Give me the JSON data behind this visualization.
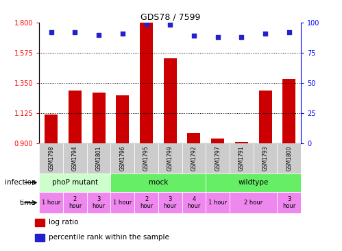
{
  "title": "GDS78 / 7599",
  "samples": [
    "GSM1798",
    "GSM1794",
    "GSM1801",
    "GSM1796",
    "GSM1795",
    "GSM1799",
    "GSM1792",
    "GSM1797",
    "GSM1791",
    "GSM1793",
    "GSM1800"
  ],
  "log_ratio": [
    1.115,
    1.295,
    1.275,
    1.255,
    1.8,
    1.535,
    0.975,
    0.935,
    0.91,
    1.295,
    1.38
  ],
  "percentile": [
    92,
    92,
    90,
    91,
    99,
    98,
    89,
    88,
    88,
    91,
    92
  ],
  "ylim_left": [
    0.9,
    1.8
  ],
  "ylim_right": [
    0,
    100
  ],
  "yticks_left": [
    0.9,
    1.125,
    1.35,
    1.575,
    1.8
  ],
  "yticks_right": [
    0,
    25,
    50,
    75,
    100
  ],
  "hlines": [
    1.125,
    1.35,
    1.575
  ],
  "bar_color": "#cc0000",
  "dot_color": "#2222cc",
  "infection_spans": [
    {
      "label": "phoP mutant",
      "color": "#ccffcc",
      "start": 0,
      "end": 3
    },
    {
      "label": "mock",
      "color": "#66ee66",
      "start": 3,
      "end": 7
    },
    {
      "label": "wildtype",
      "color": "#66ee66",
      "start": 7,
      "end": 11
    }
  ],
  "time_spans": [
    {
      "label": "1 hour",
      "start": 0,
      "end": 1
    },
    {
      "label": "2\nhour",
      "start": 1,
      "end": 2
    },
    {
      "label": "3\nhour",
      "start": 2,
      "end": 3
    },
    {
      "label": "1 hour",
      "start": 3,
      "end": 4
    },
    {
      "label": "2\nhour",
      "start": 4,
      "end": 5
    },
    {
      "label": "3\nhour",
      "start": 5,
      "end": 6
    },
    {
      "label": "4\nhour",
      "start": 6,
      "end": 7
    },
    {
      "label": "1 hour",
      "start": 7,
      "end": 8
    },
    {
      "label": "2 hour",
      "start": 8,
      "end": 10
    },
    {
      "label": "3\nhour",
      "start": 10,
      "end": 11
    }
  ],
  "time_color": "#ee88ee",
  "xlabel_color": "#cccccc",
  "legend_items": [
    {
      "color": "#cc0000",
      "label": "log ratio"
    },
    {
      "color": "#2222cc",
      "label": "percentile rank within the sample"
    }
  ]
}
